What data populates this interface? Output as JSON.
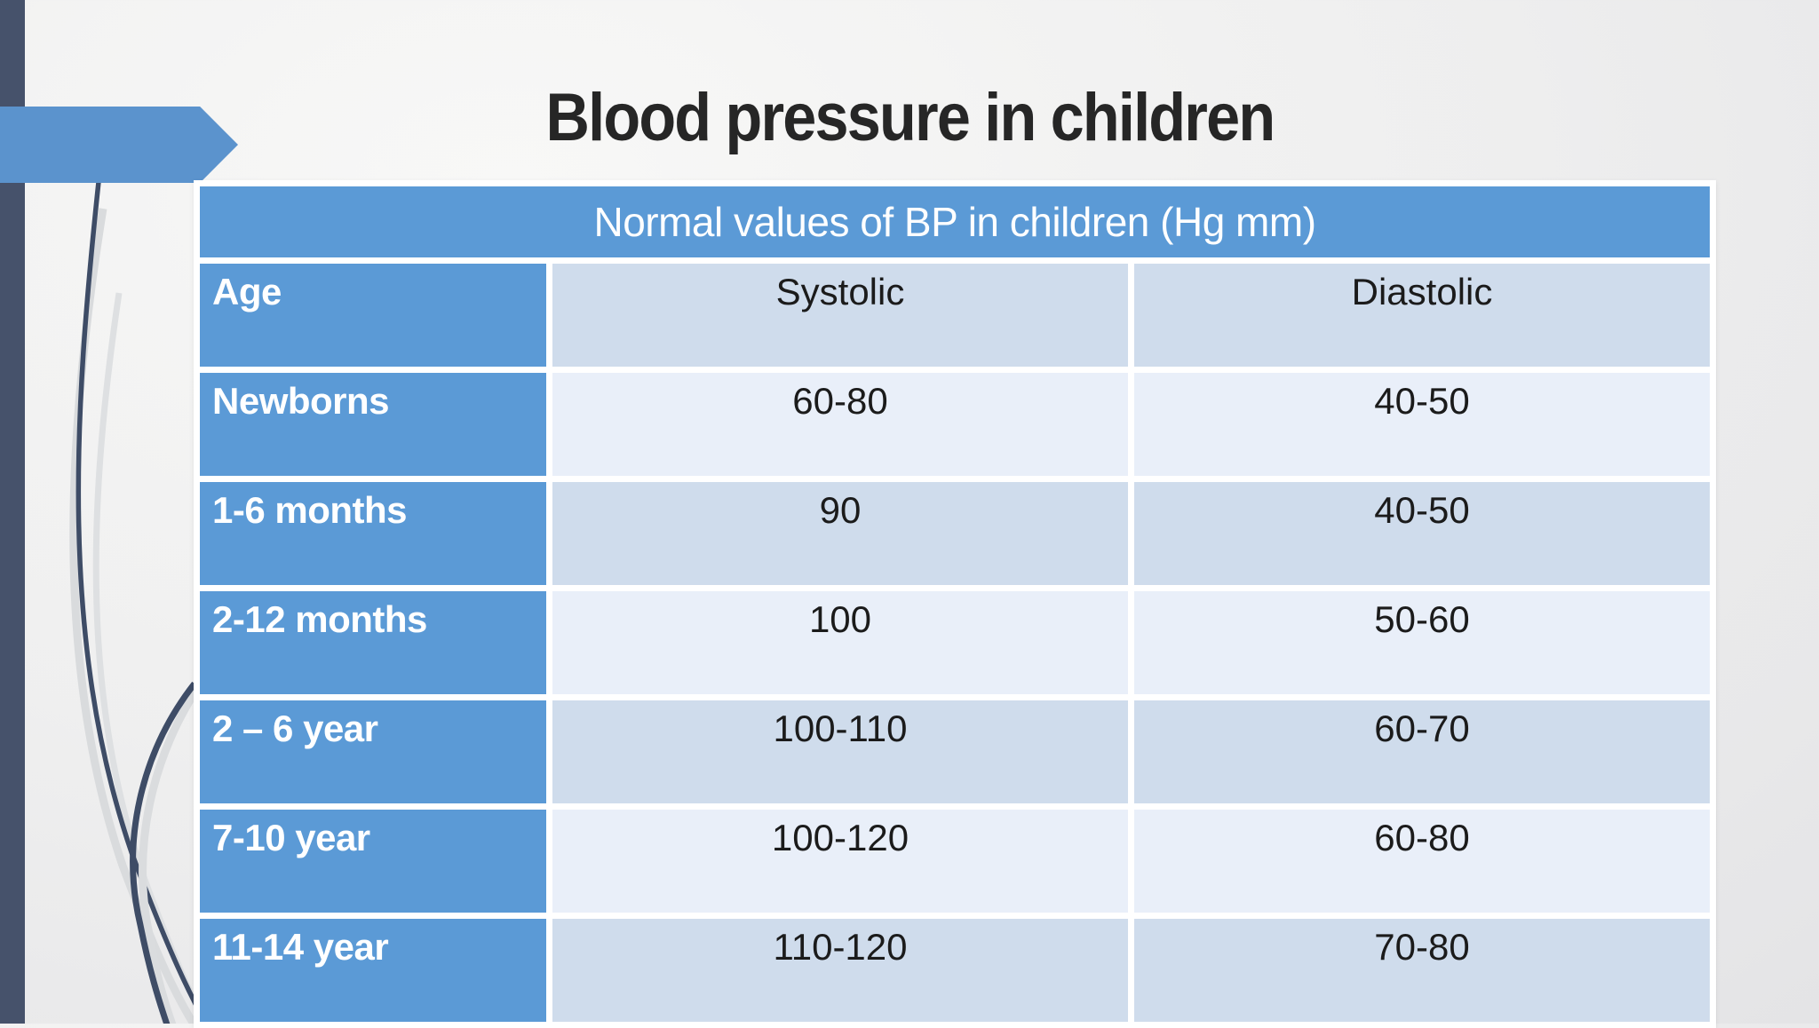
{
  "slide": {
    "title": "Blood pressure in children",
    "table": {
      "caption": "Normal values of BP in children (Hg mm)",
      "columns": [
        "Age",
        "Systolic",
        "Diastolic"
      ],
      "rows": [
        {
          "age": "Newborns",
          "systolic": "60-80",
          "diastolic": "40-50"
        },
        {
          "age": "1-6 months",
          "systolic": "90",
          "diastolic": "40-50"
        },
        {
          "age": "2-12 months",
          "systolic": "100",
          "diastolic": "50-60"
        },
        {
          "age": "2 – 6 year",
          "systolic": "100-110",
          "diastolic": "60-70"
        },
        {
          "age": "7-10 year",
          "systolic": "100-120",
          "diastolic": "60-80"
        },
        {
          "age": "11-14 year",
          "systolic": "110-120",
          "diastolic": "70-80"
        }
      ]
    },
    "colors": {
      "accent_blue": "#5B9AD6",
      "arrow_blue": "#5B93CD",
      "band_light": "#E9EFF9",
      "band_dark": "#CFDCEC",
      "left_bar": "#46526B",
      "curve_dark": "#3E4C66",
      "curve_light": "#D9DBDD"
    }
  }
}
